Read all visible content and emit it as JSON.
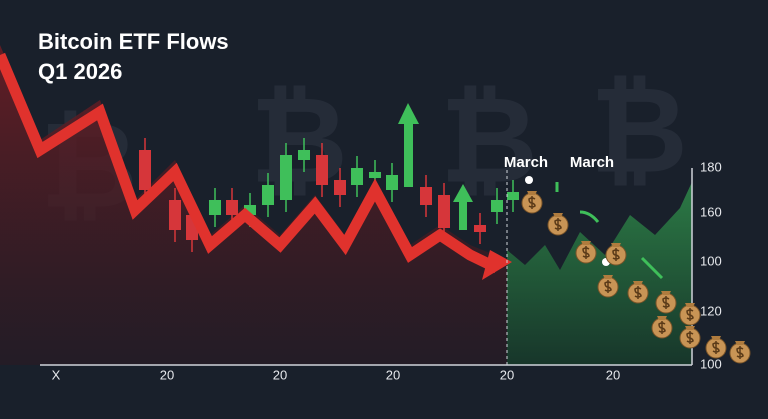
{
  "header": {
    "title": "Bitcoin ETF Flows",
    "subtitle": "Q1 2026"
  },
  "annotations": [
    "March",
    "March"
  ],
  "axis": {
    "right_labels": [
      "180",
      "160",
      "100",
      "120",
      "100"
    ],
    "bottom_labels": [
      "X",
      "20",
      "20",
      "20",
      "20",
      "20"
    ]
  }
}
